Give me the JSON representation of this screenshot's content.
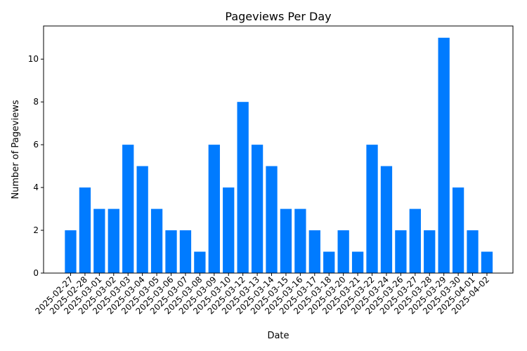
{
  "chart_data": {
    "type": "bar",
    "title": "Pageviews Per Day",
    "xlabel": "Date",
    "ylabel": "Number of Pageviews",
    "ylim": [
      0,
      11.55
    ],
    "yticks": [
      0,
      2,
      4,
      6,
      8,
      10
    ],
    "grid": false,
    "bar_color": "#007bff",
    "categories": [
      "2025-02-27",
      "2025-02-28",
      "2025-03-01",
      "2025-03-02",
      "2025-03-03",
      "2025-03-04",
      "2025-03-05",
      "2025-03-06",
      "2025-03-07",
      "2025-03-08",
      "2025-03-09",
      "2025-03-10",
      "2025-03-12",
      "2025-03-13",
      "2025-03-14",
      "2025-03-15",
      "2025-03-16",
      "2025-03-17",
      "2025-03-18",
      "2025-03-20",
      "2025-03-21",
      "2025-03-22",
      "2025-03-24",
      "2025-03-26",
      "2025-03-27",
      "2025-03-28",
      "2025-03-29",
      "2025-03-30",
      "2025-04-01",
      "2025-04-02"
    ],
    "values": [
      2,
      4,
      3,
      3,
      6,
      5,
      3,
      2,
      2,
      1,
      6,
      4,
      8,
      6,
      5,
      3,
      3,
      2,
      1,
      2,
      1,
      6,
      5,
      2,
      3,
      2,
      11,
      4,
      2,
      1
    ]
  }
}
